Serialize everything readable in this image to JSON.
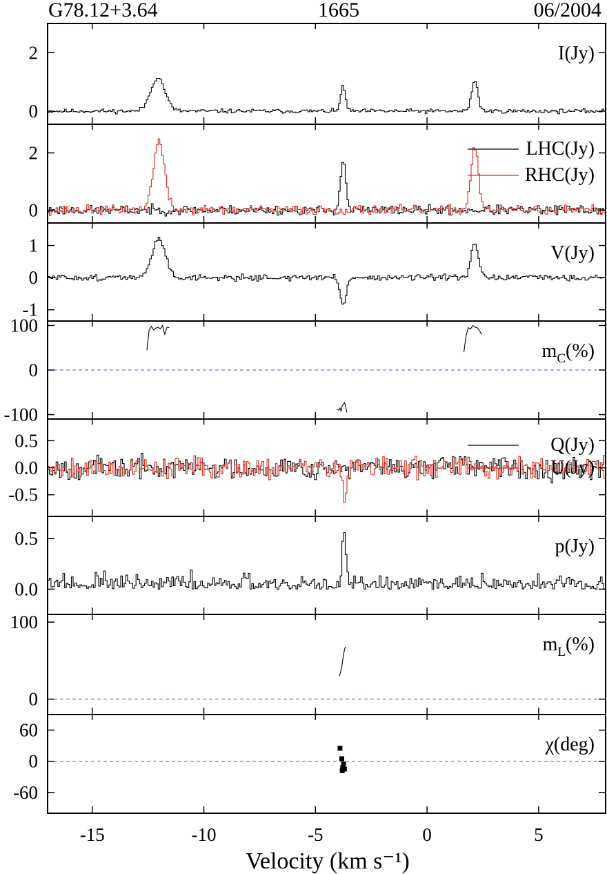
{
  "header": {
    "source": "G78.12+3.64",
    "frequency": "1665",
    "epoch": "06/2004"
  },
  "chart_data": {
    "type": "line",
    "xlabel": "Velocity (km s⁻¹)",
    "xlim": [
      -17,
      8
    ],
    "xticks": [
      -15,
      -10,
      -5,
      0,
      5
    ],
    "grid": false,
    "panels": [
      {
        "id": "I",
        "label_main": "I(Jy)",
        "ylim": [
          -0.45,
          3.0
        ],
        "yticks": [
          {
            "v": 0,
            "t": "0"
          },
          {
            "v": 2,
            "t": "2"
          }
        ],
        "series": [
          {
            "name": "I(Jy)",
            "color": "#000000",
            "noise": 0.035,
            "seed": 11,
            "peaks": [
              {
                "c": -12.1,
                "a": 1.15,
                "w": 0.32
              },
              {
                "c": -3.8,
                "a": 0.9,
                "w": 0.1
              },
              {
                "c": 2.1,
                "a": 1.05,
                "w": 0.14
              }
            ]
          }
        ]
      },
      {
        "id": "LR",
        "legend": [
          "LHC(Jy)",
          "RHC(Jy)"
        ],
        "ylim": [
          -0.45,
          3.0
        ],
        "yticks": [
          {
            "v": 0,
            "t": "0"
          },
          {
            "v": 2,
            "t": "2"
          }
        ],
        "series": [
          {
            "name": "LHC(Jy)",
            "color": "#000000",
            "noise": 0.08,
            "seed": 23,
            "peaks": [
              {
                "c": -3.8,
                "a": 1.75,
                "w": 0.12
              }
            ]
          },
          {
            "name": "RHC(Jy)",
            "color": "#d42a1c",
            "noise": 0.08,
            "seed": 37,
            "peaks": [
              {
                "c": -12.05,
                "a": 2.4,
                "w": 0.25
              },
              {
                "c": 2.1,
                "a": 2.2,
                "w": 0.17
              }
            ]
          }
        ]
      },
      {
        "id": "V",
        "label_main": "V(Jy)",
        "ylim": [
          -1.35,
          1.7
        ],
        "yticks": [
          {
            "v": 1,
            "t": "1"
          },
          {
            "v": 0,
            "t": "0"
          },
          {
            "v": -1,
            "t": "-1"
          }
        ],
        "series": [
          {
            "name": "V(Jy)",
            "color": "#000000",
            "noise": 0.045,
            "seed": 51,
            "peaks": [
              {
                "c": -12.05,
                "a": 1.2,
                "w": 0.3
              },
              {
                "c": -3.8,
                "a": -0.85,
                "w": 0.13
              },
              {
                "c": 2.1,
                "a": 1.05,
                "w": 0.16
              }
            ]
          }
        ]
      },
      {
        "id": "mc",
        "label_main": "m",
        "label_sub": "C",
        "label_tail": "(%)",
        "ylim": [
          -110,
          110
        ],
        "yticks": [
          {
            "v": 100,
            "t": "100"
          },
          {
            "v": 0,
            "t": "0"
          },
          {
            "v": -100,
            "t": "-100"
          }
        ],
        "zero_line": true,
        "fragments": [
          {
            "x": [
              -12.55,
              -12.45,
              -12.35,
              -12.25,
              -12.15,
              -12.05,
              -11.95,
              -11.85,
              -11.8,
              -11.75,
              -11.65,
              -11.55
            ],
            "y": [
              45,
              90,
              98,
              90,
              94,
              96,
              92,
              100,
              88,
              80,
              96,
              95
            ]
          },
          {
            "x": [
              1.65,
              1.75,
              1.85,
              1.95,
              2.05,
              2.15,
              2.25,
              2.35,
              2.45
            ],
            "y": [
              40,
              78,
              95,
              92,
              100,
              96,
              95,
              88,
              80
            ]
          },
          {
            "x": [
              -4.05,
              -3.95,
              -3.9,
              -3.85,
              -3.8,
              -3.75,
              -3.7,
              -3.65,
              -3.6
            ],
            "y": [
              -88,
              -90,
              -85,
              -92,
              -80,
              -78,
              -73,
              -80,
              -95
            ]
          }
        ]
      },
      {
        "id": "QU",
        "legend": [
          "Q(Jy)",
          "U(Jy)"
        ],
        "ylim": [
          -0.9,
          0.9
        ],
        "yticks": [
          {
            "v": 0.5,
            "t": "0.5"
          },
          {
            "v": 0,
            "t": "0.0"
          },
          {
            "v": -0.5,
            "t": "-0.5"
          }
        ],
        "series": [
          {
            "name": "Q(Jy)",
            "color": "#000000",
            "noise": 0.1,
            "seed": 67,
            "peaks": []
          },
          {
            "name": "U(Jy)",
            "color": "#d42a1c",
            "noise": 0.1,
            "seed": 79,
            "peaks": [
              {
                "c": -3.75,
                "a": -0.5,
                "w": 0.1
              }
            ]
          }
        ]
      },
      {
        "id": "p",
        "label_main": "p(Jy)",
        "ylim": [
          -0.25,
          0.72
        ],
        "yticks": [
          {
            "v": 0.5,
            "t": "0.5"
          },
          {
            "v": 0,
            "t": "0.0"
          }
        ],
        "series": [
          {
            "name": "p(Jy)",
            "color": "#000000",
            "noise": 0.06,
            "seed": 97,
            "offset": 0.02,
            "abs": true,
            "peaks": [
              {
                "c": -3.75,
                "a": 0.5,
                "w": 0.08
              }
            ]
          }
        ]
      },
      {
        "id": "ml",
        "label_main": "m",
        "label_sub": "L",
        "label_tail": "(%)",
        "ylim": [
          -20,
          110
        ],
        "yticks": [
          {
            "v": 100,
            "t": "100"
          },
          {
            "v": 0,
            "t": "0"
          }
        ],
        "zero_line": true,
        "fragments": [
          {
            "x": [
              -3.92,
              -3.87,
              -3.82,
              -3.78,
              -3.74,
              -3.7,
              -3.66
            ],
            "y": [
              30,
              36,
              42,
              50,
              58,
              64,
              68
            ]
          }
        ]
      },
      {
        "id": "chi",
        "label_main": "χ(deg)",
        "ylim": [
          -100,
          90
        ],
        "yticks": [
          {
            "v": 60,
            "t": "60"
          },
          {
            "v": 0,
            "t": "0"
          },
          {
            "v": -60,
            "t": "-60"
          }
        ],
        "zero_line": true,
        "points": {
          "x": [
            -3.9,
            -3.82,
            -3.78,
            -3.74,
            -3.7,
            -3.8
          ],
          "y": [
            25,
            5,
            -12,
            -5,
            -15,
            -18
          ]
        }
      }
    ]
  }
}
